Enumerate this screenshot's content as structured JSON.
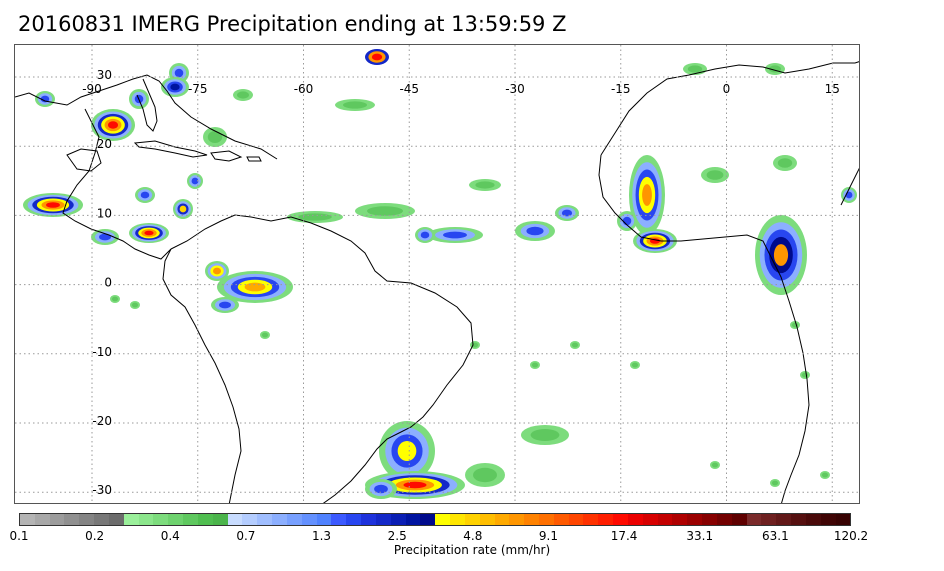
{
  "title": "20160831 IMERG Precipitation ending at 13:59:59 Z",
  "map": {
    "lon_labels": [
      {
        "lon": -90,
        "text": "-90"
      },
      {
        "lon": -75,
        "text": "-75"
      },
      {
        "lon": -60,
        "text": "-60"
      },
      {
        "lon": -45,
        "text": "-45"
      },
      {
        "lon": -30,
        "text": "-30"
      },
      {
        "lon": -15,
        "text": "-15"
      },
      {
        "lon": 0,
        "text": "0"
      },
      {
        "lon": 15,
        "text": "15"
      }
    ],
    "lat_labels": [
      {
        "lat": 30,
        "text": "30"
      },
      {
        "lat": 20,
        "text": "20"
      },
      {
        "lat": 10,
        "text": "10"
      },
      {
        "lat": 0,
        "text": "0"
      },
      {
        "lat": -10,
        "text": "-10"
      },
      {
        "lat": -20,
        "text": "-20"
      },
      {
        "lat": -30,
        "text": "-30"
      }
    ],
    "gridlines": "dotted",
    "colors": {
      "coastline": "#000000",
      "grid": "#9a9a9a"
    }
  },
  "colorbar": {
    "title": "Precipitation rate (mm/hr)",
    "colors": [
      "#b4b4b4",
      "#a8a8a8",
      "#9c9c9c",
      "#909090",
      "#848484",
      "#787878",
      "#6c6c6c",
      "#9bf09b",
      "#8ce68c",
      "#7ddc7d",
      "#6ed26e",
      "#5fc85f",
      "#50be50",
      "#4bb44b",
      "#c8dcff",
      "#b4cdff",
      "#a0beff",
      "#8cafff",
      "#78a0ff",
      "#6491ff",
      "#5082ff",
      "#3c5aff",
      "#2846f0",
      "#1e32dc",
      "#1428c8",
      "#0a1eb4",
      "#0014a0",
      "#000a8c",
      "#ffff00",
      "#ffe600",
      "#ffd200",
      "#ffbe00",
      "#ffaa00",
      "#ff9600",
      "#ff8200",
      "#ff7000",
      "#ff5a00",
      "#ff4600",
      "#ff3200",
      "#ff1e00",
      "#ff0a00",
      "#eb0000",
      "#d70000",
      "#c30000",
      "#af0000",
      "#9b0000",
      "#870000",
      "#730000",
      "#5f0000",
      "#7a2a2a",
      "#6e2020",
      "#621818",
      "#561010",
      "#4a0a0a",
      "#400505",
      "#380303"
    ],
    "tick_labels": [
      "0.1",
      "0.2",
      "0.4",
      "0.7",
      "1.3",
      "2.5",
      "4.8",
      "9.1",
      "17.4",
      "33.1",
      "63.1",
      "120.2"
    ]
  }
}
